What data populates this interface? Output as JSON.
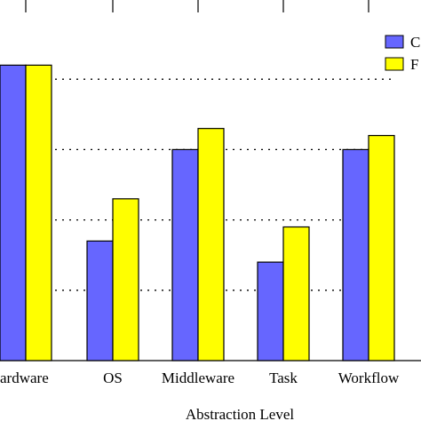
{
  "chart_data": {
    "type": "bar",
    "categories": [
      "Hardware",
      "OS",
      "Middleware",
      "Task",
      "Workflow"
    ],
    "visible_category_labels": [
      "ardware",
      "OS",
      "Middleware",
      "Task",
      "Workflow"
    ],
    "series": [
      {
        "legend_text": "C",
        "color": "#6666ff",
        "values": [
          4.2,
          1.7,
          3.0,
          1.4,
          3.0
        ]
      },
      {
        "legend_text": "F",
        "color": "#ffff00",
        "values": [
          4.2,
          2.3,
          3.3,
          1.9,
          3.2
        ]
      }
    ],
    "xlabel": "Abstraction Level",
    "ylim": [
      0,
      5
    ],
    "grid": "dotted horizontal",
    "legend_position": "top-right"
  }
}
